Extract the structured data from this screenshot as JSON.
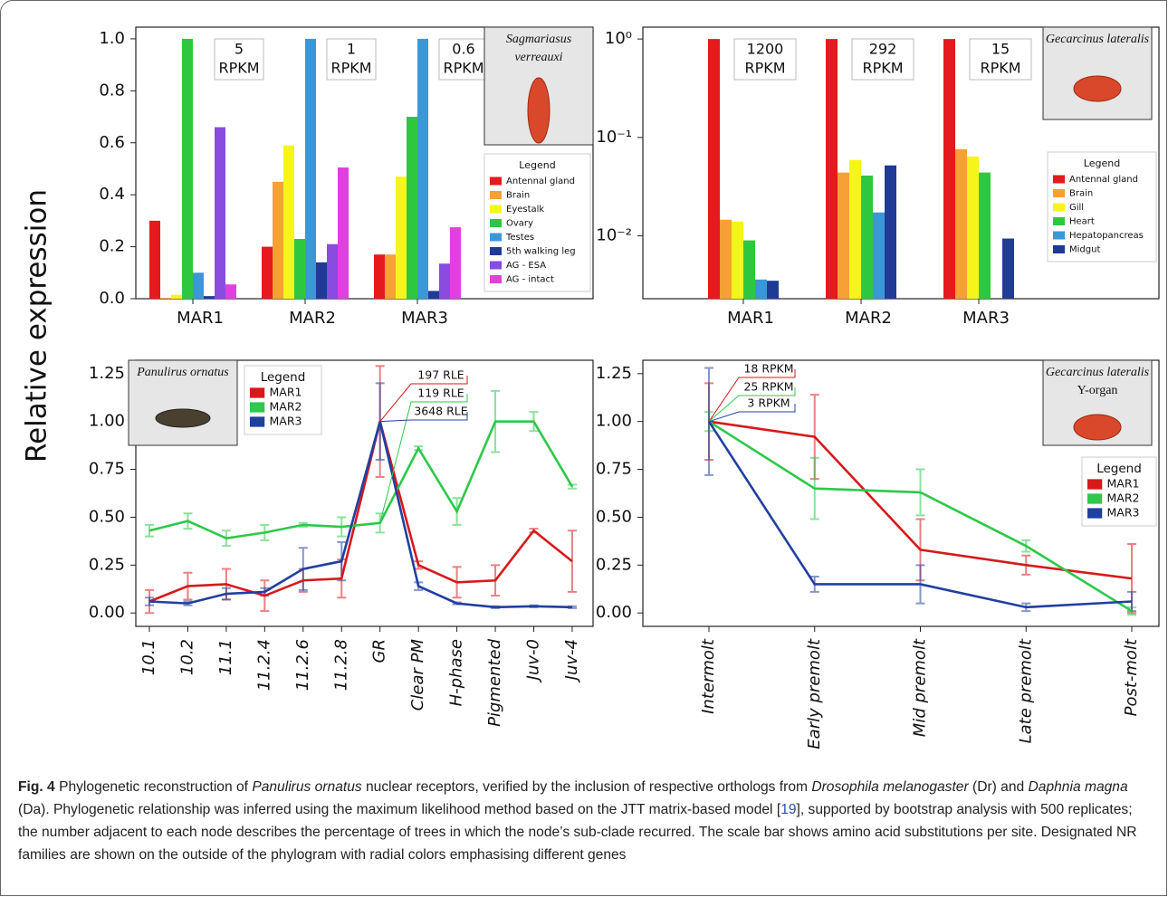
{
  "y_label": "Relative expression",
  "caption": {
    "parts": [
      "Fig. 4",
      " Phylogenetic reconstruction of ",
      "Panulirus ornatus",
      " nuclear receptors, verified by the inclusion of respective orthologs from ",
      "Drosophila melanogaster",
      " (Dr) and ",
      "Daphnia magna",
      " (Da). Phylogenetic relationship was inferred using the maximum likelihood method based on the JTT matrix-based model [",
      "19",
      "], supported by bootstrap analysis with 500 replicates; the number adjacent to each node describes the percentage of trees in which the node’s sub-clade recurred. The scale bar shows amino acid substitutions per site. Designated NR families are shown on the outside of the phylogram with radial colors emphasising different genes"
    ]
  },
  "chart_data": [
    {
      "type": "bar",
      "categories": [
        "MAR1",
        "MAR2",
        "MAR3"
      ],
      "series": [
        {
          "name": "Antennal gland",
          "color": "#e41a1c",
          "values": [
            0.3,
            0.2,
            0.17
          ]
        },
        {
          "name": "Brain",
          "color": "#f7a035",
          "values": [
            0.003,
            0.45,
            0.17
          ]
        },
        {
          "name": "Eyestalk",
          "color": "#f5f51c",
          "values": [
            0.015,
            0.59,
            0.47
          ]
        },
        {
          "name": "Ovary",
          "color": "#2ec840",
          "values": [
            1.0,
            0.23,
            0.7
          ]
        },
        {
          "name": "Testes",
          "color": "#3a98d8",
          "values": [
            0.1,
            1.0,
            1.0
          ]
        },
        {
          "name": "5th walking leg",
          "color": "#1f3b96",
          "values": [
            0.01,
            0.14,
            0.03
          ]
        },
        {
          "name": "AG - ESA",
          "color": "#8a4be0",
          "values": [
            0.66,
            0.21,
            0.135
          ]
        },
        {
          "name": "AG - intact",
          "color": "#e040e0",
          "values": [
            0.055,
            0.505,
            0.275
          ]
        }
      ],
      "ylim": [
        0,
        1.045
      ],
      "yticks": [
        {
          "value": 0,
          "label": "0.0"
        },
        0.2,
        0.4,
        0.6,
        0.8,
        {
          "value": 1,
          "label": "1.0"
        }
      ],
      "annotations": [
        [
          "5",
          "RPKM"
        ],
        [
          "1",
          "RPKM"
        ],
        [
          "0.6",
          "RPKM"
        ]
      ],
      "species": [
        "Sagmariasus",
        "verreauxi"
      ],
      "legend_title": "Legend",
      "legend_loc": "right"
    },
    {
      "type": "bar",
      "yscale": "log",
      "categories": [
        "MAR1",
        "MAR2",
        "MAR3"
      ],
      "series": [
        {
          "name": "Antennal gland",
          "color": "#e41a1c",
          "values": [
            1,
            1,
            1
          ]
        },
        {
          "name": "Brain",
          "color": "#f7a035",
          "values": [
            0.0146,
            0.044,
            0.076
          ]
        },
        {
          "name": "Gill",
          "color": "#f5f51c",
          "values": [
            0.014,
            0.059,
            0.064
          ]
        },
        {
          "name": "Heart",
          "color": "#2ec840",
          "values": [
            0.009,
            0.041,
            0.044
          ]
        },
        {
          "name": "Hepatopancreas",
          "color": "#3a98d8",
          "values": [
            0.0036,
            0.0173,
            null
          ]
        },
        {
          "name": "Midgut",
          "color": "#1f3b96",
          "values": [
            0.0035,
            0.052,
            0.0094
          ]
        }
      ],
      "ylim": [
        0.0023,
        1.32
      ],
      "yticks": [
        {
          "value": 0.01,
          "label": "10⁻²"
        },
        {
          "value": 0.1,
          "label": "10⁻¹"
        },
        {
          "value": 1,
          "label": "10⁰"
        }
      ],
      "annotations": [
        [
          "1200",
          "RPKM"
        ],
        [
          "292",
          "RPKM"
        ],
        [
          "15",
          "RPKM"
        ]
      ],
      "species": [
        "Gecarcinus lateralis"
      ],
      "legend_title": "Legend",
      "legend_loc": "right"
    },
    {
      "type": "line",
      "categories": [
        "10.1",
        "10.2",
        "11.1",
        "11.2.4",
        "11.2.6",
        "11.2.8",
        "GR",
        "Clear PM",
        "H-phase",
        "Pigmented",
        "Juv-0",
        "Juv-4"
      ],
      "series": [
        {
          "name": "MAR1",
          "color": "#d7191c",
          "values": [
            0.06,
            0.14,
            0.15,
            0.09,
            0.17,
            0.18,
            1.0,
            0.25,
            0.16,
            0.17,
            0.43,
            0.27
          ],
          "errors": [
            0.06,
            0.07,
            0.08,
            0.08,
            0.06,
            0.1,
            0.29,
            0.02,
            0.08,
            0.08,
            0.01,
            0.16
          ]
        },
        {
          "name": "MAR2",
          "color": "#2ec84a",
          "values": [
            0.43,
            0.48,
            0.39,
            0.42,
            0.46,
            0.45,
            0.47,
            0.86,
            0.53,
            1.0,
            1.0,
            0.66
          ],
          "errors": [
            0.03,
            0.04,
            0.04,
            0.04,
            0.01,
            0.05,
            0.05,
            0.01,
            0.07,
            0.16,
            0.05,
            0.01
          ]
        },
        {
          "name": "MAR3",
          "color": "#2040a0",
          "values": [
            0.06,
            0.05,
            0.1,
            0.11,
            0.23,
            0.27,
            1.0,
            0.14,
            0.05,
            0.03,
            0.035,
            0.03
          ],
          "errors": [
            0.02,
            0.01,
            0.03,
            0.02,
            0.11,
            0.1,
            0.2,
            0.02,
            0.005,
            0.005,
            0.005,
            0.005
          ]
        }
      ],
      "ylim": [
        -0.07,
        1.32
      ],
      "yticks": [
        {
          "value": 0,
          "label": "0.00"
        },
        0.25,
        {
          "value": 0.5,
          "label": "0.50"
        },
        0.75,
        {
          "value": 1,
          "label": "1.00"
        },
        1.25
      ],
      "annotations": [
        "197 RLE",
        "119 RLE",
        "3648 RLE"
      ],
      "species": [
        "Panulirus ornatus"
      ],
      "legend_title": "Legend",
      "legend_loc": "left"
    },
    {
      "type": "line",
      "categories": [
        "Intermolt",
        "Early premolt",
        "Mid premolt",
        "Late premolt",
        "Post-molt"
      ],
      "series": [
        {
          "name": "MAR1",
          "color": "#d7191c",
          "values": [
            1.0,
            0.92,
            0.33,
            0.25,
            0.18
          ],
          "errors": [
            0.2,
            0.22,
            0.16,
            0.05,
            0.18
          ]
        },
        {
          "name": "MAR2",
          "color": "#2ec84a",
          "values": [
            1.0,
            0.65,
            0.63,
            0.35,
            0.01
          ],
          "errors": [
            0.05,
            0.16,
            0.12,
            0.03,
            0.02
          ]
        },
        {
          "name": "MAR3",
          "color": "#2040a0",
          "values": [
            1.0,
            0.15,
            0.15,
            0.03,
            0.06
          ],
          "errors": [
            0.28,
            0.04,
            0.1,
            0.02,
            0.05
          ]
        }
      ],
      "ylim": [
        -0.07,
        1.32
      ],
      "yticks": [
        {
          "value": 0,
          "label": "0.00"
        },
        0.25,
        {
          "value": 0.5,
          "label": "0.50"
        },
        0.75,
        {
          "value": 1,
          "label": "1.00"
        },
        1.25
      ],
      "annotations": [
        "18 RPKM",
        "25 RPKM",
        "3 RPKM"
      ],
      "species": [
        "Gecarcinus lateralis",
        "Y-organ"
      ],
      "legend_title": "Legend",
      "legend_loc": "right"
    }
  ]
}
